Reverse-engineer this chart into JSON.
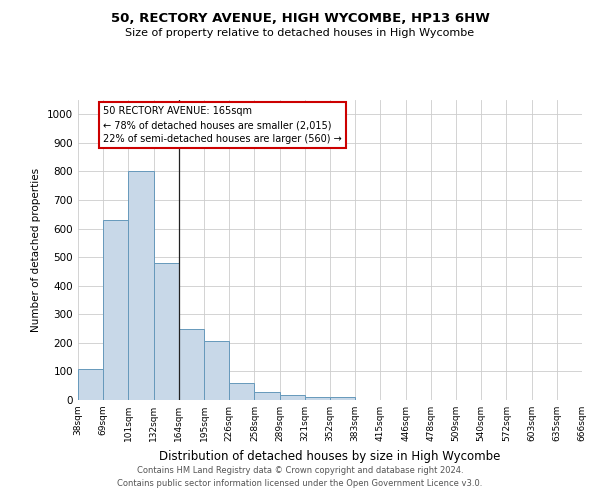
{
  "title": "50, RECTORY AVENUE, HIGH WYCOMBE, HP13 6HW",
  "subtitle": "Size of property relative to detached houses in High Wycombe",
  "xlabel": "Distribution of detached houses by size in High Wycombe",
  "ylabel": "Number of detached properties",
  "bar_values": [
    110,
    630,
    800,
    480,
    250,
    205,
    60,
    28,
    18,
    12,
    10,
    0,
    0,
    0,
    0,
    0,
    0,
    0,
    0,
    0
  ],
  "x_labels": [
    "38sqm",
    "69sqm",
    "101sqm",
    "132sqm",
    "164sqm",
    "195sqm",
    "226sqm",
    "258sqm",
    "289sqm",
    "321sqm",
    "352sqm",
    "383sqm",
    "415sqm",
    "446sqm",
    "478sqm",
    "509sqm",
    "540sqm",
    "572sqm",
    "603sqm",
    "635sqm",
    "666sqm"
  ],
  "bar_color": "#c8d8e8",
  "bar_edge_color": "#6699bb",
  "property_line_x": 4,
  "annotation_text": "50 RECTORY AVENUE: 165sqm\n← 78% of detached houses are smaller (2,015)\n22% of semi-detached houses are larger (560) →",
  "annotation_box_color": "#ffffff",
  "annotation_box_edge_color": "#cc0000",
  "ylim": [
    0,
    1050
  ],
  "yticks": [
    0,
    100,
    200,
    300,
    400,
    500,
    600,
    700,
    800,
    900,
    1000
  ],
  "footer_line1": "Contains HM Land Registry data © Crown copyright and database right 2024.",
  "footer_line2": "Contains public sector information licensed under the Open Government Licence v3.0.",
  "background_color": "#ffffff",
  "grid_color": "#cccccc"
}
